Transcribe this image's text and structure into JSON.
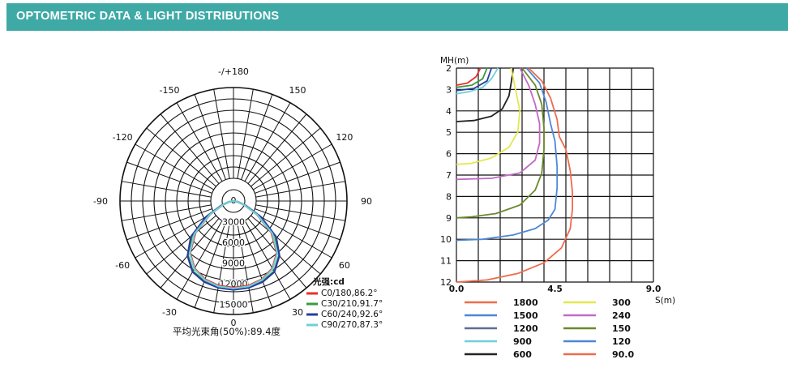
{
  "header": {
    "title": "OPTOMETRIC DATA & LIGHT DISTRIBUTIONS"
  },
  "chart_data": [
    {
      "type": "polar",
      "angle_labels": [
        {
          "label": "-/+180",
          "angle": 180
        },
        {
          "label": "150",
          "angle": 150
        },
        {
          "label": "120",
          "angle": 120
        },
        {
          "label": "90",
          "angle": 90
        },
        {
          "label": "60",
          "angle": 60
        },
        {
          "label": "30",
          "angle": 30
        },
        {
          "label": "-150",
          "angle": -150
        },
        {
          "label": "-120",
          "angle": -120
        },
        {
          "label": "-90",
          "angle": -90
        },
        {
          "label": "-60",
          "angle": -60
        },
        {
          "label": "-30",
          "angle": -30
        }
      ],
      "radial_labels": [
        "0",
        "3000",
        "6000",
        "9000",
        "12000",
        "15000"
      ],
      "bottom_label": "0",
      "rmax": 16500,
      "unit_label": "光强:cd",
      "series": [
        {
          "name": "C0/180,86.2°",
          "color": "#e8302a",
          "points": [
            [
              0,
              12600
            ],
            [
              10,
              12500
            ],
            [
              20,
              12100
            ],
            [
              30,
              11300
            ],
            [
              40,
              9800
            ],
            [
              50,
              7200
            ],
            [
              60,
              3900
            ],
            [
              70,
              1600
            ],
            [
              80,
              500
            ],
            [
              90,
              0
            ]
          ]
        },
        {
          "name": "C30/210,91.7°",
          "color": "#3c9a3c",
          "points": [
            [
              0,
              12800
            ],
            [
              10,
              12700
            ],
            [
              20,
              12400
            ],
            [
              30,
              11800
            ],
            [
              40,
              10300
            ],
            [
              50,
              7900
            ],
            [
              60,
              4400
            ],
            [
              70,
              1800
            ],
            [
              80,
              600
            ],
            [
              90,
              0
            ]
          ]
        },
        {
          "name": "C60/240,92.6°",
          "color": "#2b3d9e",
          "points": [
            [
              0,
              12900
            ],
            [
              10,
              12800
            ],
            [
              20,
              12500
            ],
            [
              30,
              11900
            ],
            [
              40,
              10400
            ],
            [
              50,
              8100
            ],
            [
              60,
              4600
            ],
            [
              70,
              1900
            ],
            [
              80,
              600
            ],
            [
              90,
              0
            ]
          ]
        },
        {
          "name": "C90/270,87.3°",
          "color": "#6fd0d6",
          "points": [
            [
              0,
              12700
            ],
            [
              10,
              12600
            ],
            [
              20,
              12200
            ],
            [
              30,
              11400
            ],
            [
              40,
              9900
            ],
            [
              50,
              7400
            ],
            [
              60,
              4000
            ],
            [
              70,
              1650
            ],
            [
              80,
              500
            ],
            [
              90,
              0
            ]
          ]
        }
      ],
      "caption": "平均光束角(50%):89.4度"
    },
    {
      "type": "line",
      "ylabel": "MH(m)",
      "xlabel": "S(m)",
      "y_ticks": [
        "2",
        "3",
        "4",
        "5",
        "6",
        "7",
        "8",
        "9",
        "10",
        "11",
        "12"
      ],
      "x_ticks": [
        "0.0",
        "4.5",
        "9.0"
      ],
      "xlim": [
        0,
        9
      ],
      "ylim": [
        2,
        12
      ],
      "series": [
        {
          "name": "1800",
          "color": "#ee6b4d",
          "points": [
            [
              3.3,
              2
            ],
            [
              3.9,
              2.6
            ],
            [
              4.3,
              3.4
            ],
            [
              4.6,
              4.4
            ],
            [
              4.7,
              5.2
            ],
            [
              5.0,
              5.8
            ],
            [
              5.2,
              6.8
            ],
            [
              5.3,
              7.8
            ],
            [
              5.3,
              8.6
            ],
            [
              5.2,
              9.5
            ],
            [
              4.8,
              10.4
            ],
            [
              4.0,
              11.1
            ],
            [
              2.8,
              11.6
            ],
            [
              1.4,
              11.9
            ],
            [
              0,
              12
            ]
          ]
        },
        {
          "name": "1500",
          "color": "#4e86d6",
          "points": [
            [
              3.2,
              2
            ],
            [
              3.8,
              2.7
            ],
            [
              4.1,
              3.6
            ],
            [
              4.3,
              4.6
            ],
            [
              4.5,
              5.4
            ],
            [
              4.6,
              6.6
            ],
            [
              4.6,
              7.6
            ],
            [
              4.5,
              8.6
            ],
            [
              4.2,
              9.1
            ],
            [
              3.6,
              9.5
            ],
            [
              2.6,
              9.8
            ],
            [
              1.2,
              10.0
            ],
            [
              0,
              10.05
            ]
          ]
        },
        {
          "name": "1200",
          "color": "#5c6f96",
          "points": []
        },
        {
          "name": "900",
          "color": "#6fd0d6",
          "points": [
            [
              1.9,
              2
            ],
            [
              1.6,
              2.5
            ],
            [
              1.2,
              2.9
            ],
            [
              0.6,
              3.1
            ],
            [
              0,
              3.2
            ]
          ]
        },
        {
          "name": "600",
          "color": "#222222",
          "points": [
            [
              2.6,
              2
            ],
            [
              2.5,
              2.7
            ],
            [
              2.4,
              3.3
            ],
            [
              2.1,
              3.9
            ],
            [
              1.6,
              4.25
            ],
            [
              0.8,
              4.45
            ],
            [
              0,
              4.5
            ]
          ]
        },
        {
          "name": "300",
          "color": "#e3e84e",
          "points": [
            [
              2.5,
              2
            ],
            [
              2.7,
              3.0
            ],
            [
              2.9,
              4.0
            ],
            [
              2.8,
              5.0
            ],
            [
              2.4,
              5.7
            ],
            [
              1.6,
              6.2
            ],
            [
              0.7,
              6.45
            ],
            [
              0,
              6.5
            ]
          ]
        },
        {
          "name": "240",
          "color": "#c06ac6",
          "points": [
            [
              2.9,
              2
            ],
            [
              3.3,
              2.8
            ],
            [
              3.6,
              3.7
            ],
            [
              3.8,
              4.6
            ],
            [
              3.8,
              5.5
            ],
            [
              3.6,
              6.3
            ],
            [
              2.9,
              6.9
            ],
            [
              1.6,
              7.15
            ],
            [
              0,
              7.2
            ]
          ]
        },
        {
          "name": "150",
          "color": "#6a8a2a",
          "points": [
            [
              3.0,
              2
            ],
            [
              3.6,
              2.8
            ],
            [
              3.9,
              3.7
            ],
            [
              4.0,
              4.8
            ],
            [
              4.0,
              5.8
            ],
            [
              3.9,
              6.9
            ],
            [
              3.6,
              7.7
            ],
            [
              2.9,
              8.4
            ],
            [
              1.8,
              8.8
            ],
            [
              0.7,
              8.95
            ],
            [
              0,
              9.0
            ]
          ]
        },
        {
          "name": "120",
          "color": "#4e86d6",
          "points": []
        },
        {
          "name": "90.0",
          "color": "#ee6b4d",
          "points": []
        }
      ],
      "inner_curves": [
        {
          "color": "#e8302a",
          "points": [
            [
              1.1,
              2
            ],
            [
              0.9,
              2.4
            ],
            [
              0.5,
              2.7
            ],
            [
              0,
              2.8
            ]
          ]
        },
        {
          "color": "#3c9a3c",
          "points": [
            [
              1.4,
              2
            ],
            [
              1.2,
              2.5
            ],
            [
              0.7,
              2.8
            ],
            [
              0,
              2.9
            ]
          ]
        },
        {
          "color": "#2b3d9e",
          "points": [
            [
              1.6,
              2
            ],
            [
              1.4,
              2.6
            ],
            [
              0.8,
              2.95
            ],
            [
              0,
              3.05
            ]
          ]
        }
      ]
    }
  ]
}
